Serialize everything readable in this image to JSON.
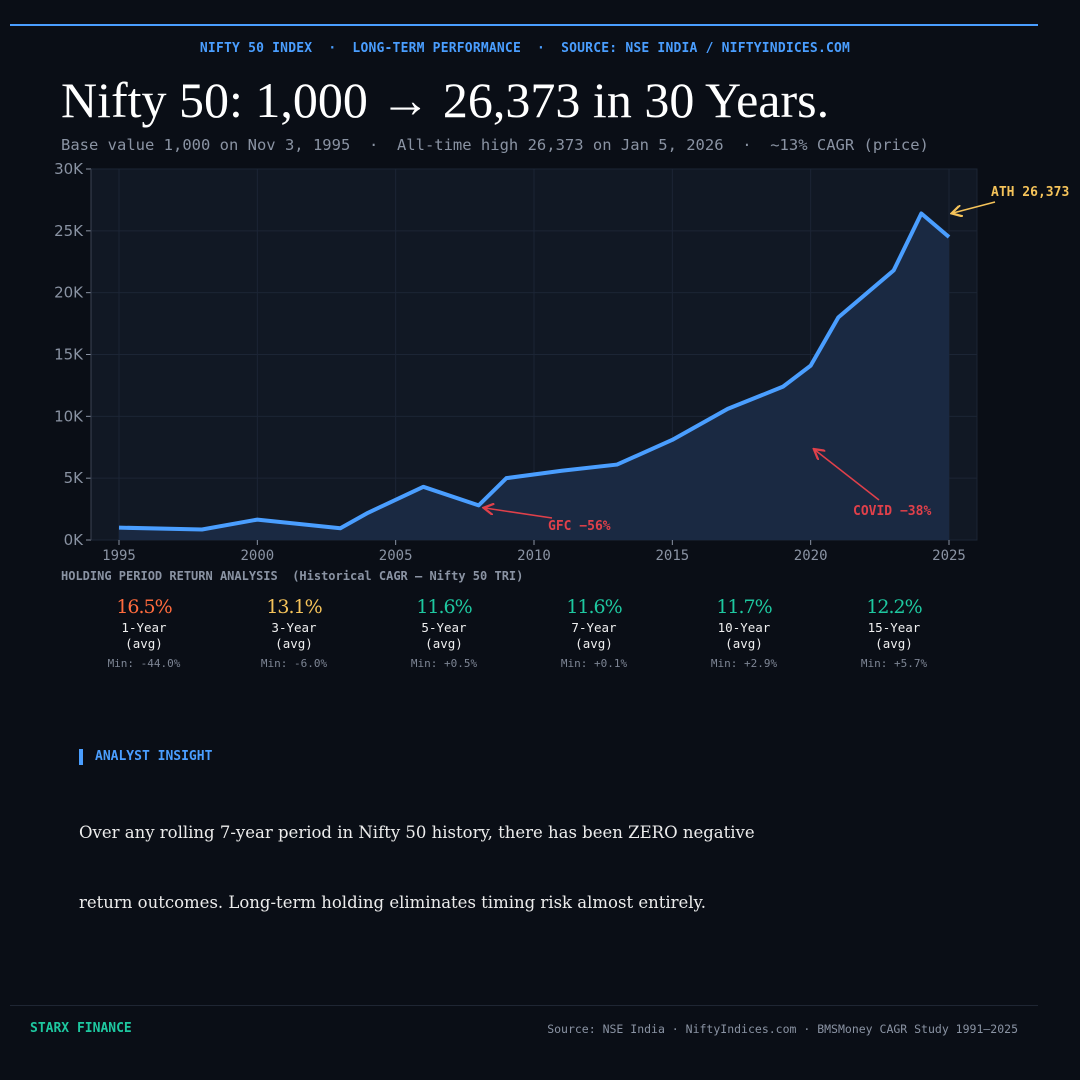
{
  "header": {
    "kicker": "NIFTY 50 INDEX  ·  LONG-TERM PERFORMANCE  ·  SOURCE: NSE INDIA / NIFTYINDICES.COM",
    "title": "Nifty 50: 1,000 → 26,373 in 30 Years.",
    "subtitle": "Base value 1,000 on Nov 3, 1995  ·  All-time high 26,373 on Jan 5, 2026  ·  ~13% CAGR (price)"
  },
  "colors": {
    "accent": "#4a9eff",
    "fill": "#1a2942",
    "ath": "#f5c35a",
    "crash": "#e0404a",
    "positive": "#1ec8a0",
    "warn": "#ff6b3d"
  },
  "chart_data": {
    "type": "area",
    "x": [
      1995,
      1998,
      2000,
      2003,
      2004,
      2006,
      2008,
      2009,
      2011,
      2013,
      2015,
      2017,
      2019,
      2020,
      2021,
      2023,
      2024,
      2025
    ],
    "values": [
      1000,
      850,
      1650,
      950,
      2200,
      4300,
      2800,
      5000,
      5600,
      6100,
      8100,
      10600,
      12400,
      14100,
      18000,
      21800,
      26400,
      24500
    ],
    "xlim": [
      1994,
      2026
    ],
    "ylim": [
      0,
      30000
    ],
    "xticks": [
      "1995",
      "2000",
      "2005",
      "2010",
      "2015",
      "2020",
      "2025"
    ],
    "yticks": [
      "0K",
      "5K",
      "10K",
      "15K",
      "20K",
      "25K",
      "30K"
    ],
    "grid": true,
    "annotations": [
      {
        "text": "ATH 26,373",
        "x": 2024,
        "y": 26373,
        "color": "#f5c35a"
      },
      {
        "text": "GFC −56%",
        "x": 2008,
        "y": 2800,
        "color": "#e0404a"
      },
      {
        "text": "COVID −38%",
        "x": 2020,
        "y": 7500,
        "color": "#e0404a"
      }
    ]
  },
  "stats": {
    "heading": "HOLDING PERIOD RETURN ANALYSIS  (Historical CAGR — Nifty 50 TRI)",
    "items": [
      {
        "value": "16.5%",
        "period": "1-Year",
        "sub": "(avg)",
        "min": "Min: -44.0%",
        "color": "#ff6b3d"
      },
      {
        "value": "13.1%",
        "period": "3-Year",
        "sub": "(avg)",
        "min": "Min: -6.0%",
        "color": "#f5c35a"
      },
      {
        "value": "11.6%",
        "period": "5-Year",
        "sub": "(avg)",
        "min": "Min: +0.5%",
        "color": "#1ec8a0"
      },
      {
        "value": "11.6%",
        "period": "7-Year",
        "sub": "(avg)",
        "min": "Min: +0.1%",
        "color": "#1ec8a0"
      },
      {
        "value": "11.7%",
        "period": "10-Year",
        "sub": "(avg)",
        "min": "Min: +2.9%",
        "color": "#1ec8a0"
      },
      {
        "value": "12.2%",
        "period": "15-Year",
        "sub": "(avg)",
        "min": "Min: +5.7%",
        "color": "#1ec8a0"
      }
    ]
  },
  "insight": {
    "label": "ANALYST INSIGHT",
    "lines": [
      "Over any rolling 7-year period in Nifty 50 history, there has been ZERO negative",
      "return outcomes. Long-term holding eliminates timing risk almost entirely."
    ]
  },
  "footer": {
    "brand": "STARX FINANCE",
    "source": "Source: NSE India · NiftyIndices.com · BMSMoney CAGR Study 1991–2025"
  }
}
